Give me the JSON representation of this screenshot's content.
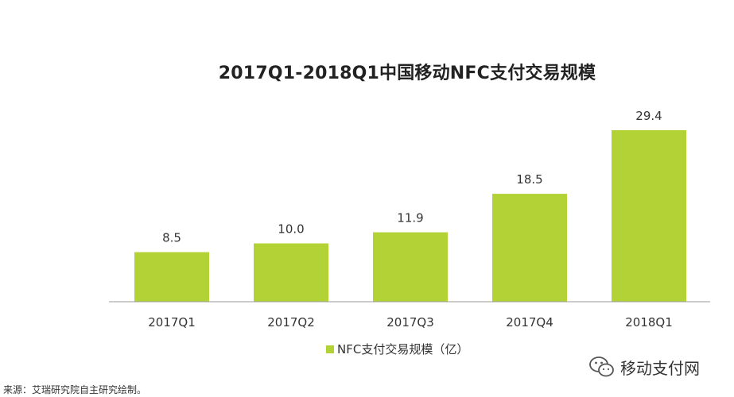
{
  "chart_data": {
    "type": "bar",
    "title": "2017Q1-2018Q1中国移动NFC支付交易规模",
    "categories": [
      "2017Q1",
      "2017Q2",
      "2017Q3",
      "2017Q4",
      "2018Q1"
    ],
    "series": [
      {
        "name": "NFC支付交易规模（亿）",
        "values": [
          8.5,
          10.0,
          11.9,
          18.5,
          29.4
        ],
        "labels": [
          "8.5",
          "10.0",
          "11.9",
          "18.5",
          "29.4"
        ],
        "color": "#b2d235"
      }
    ],
    "ylim": [
      0,
      29.4
    ],
    "grid": false,
    "legend_position": "bottom"
  },
  "legend": {
    "label": "NFC支付交易规模（亿）",
    "color": "#b2d235"
  },
  "source": "来源：艾瑞研究院自主研究绘制。",
  "watermark": {
    "text": "移动支付网",
    "icon": "wechat-icon"
  }
}
